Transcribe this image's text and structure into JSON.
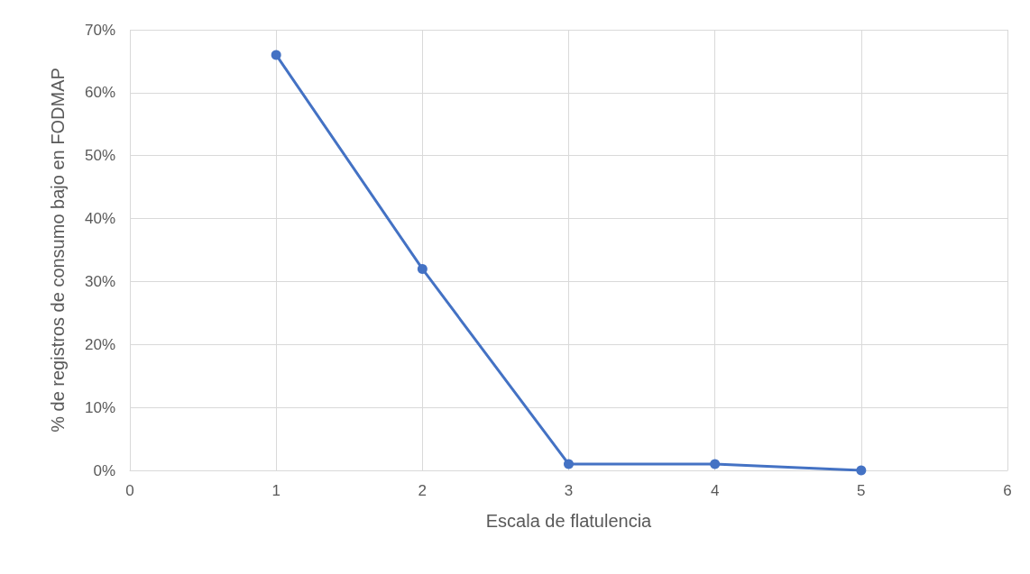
{
  "chart_data": {
    "type": "line",
    "xlabel": "Escala de flatulencia",
    "ylabel": "% de registros de consumo bajo en FODMAP",
    "x": [
      1,
      2,
      3,
      4,
      5
    ],
    "series": [
      {
        "color": "#4472c4",
        "values": [
          66,
          32,
          1,
          1,
          0
        ]
      }
    ],
    "xlim": [
      0,
      6
    ],
    "xticks": [
      0,
      1,
      2,
      3,
      4,
      5,
      6
    ],
    "ylim": [
      0,
      70
    ],
    "yticks": [
      {
        "value": 0,
        "label": "0%"
      },
      {
        "value": 10,
        "label": "10%"
      },
      {
        "value": 20,
        "label": "20%"
      },
      {
        "value": 30,
        "label": "30%"
      },
      {
        "value": 40,
        "label": "40%"
      },
      {
        "value": 50,
        "label": "50%"
      },
      {
        "value": 60,
        "label": "60%"
      },
      {
        "value": 70,
        "label": "70%"
      }
    ],
    "grid": true,
    "marker": "circle",
    "line_style": "solid"
  }
}
